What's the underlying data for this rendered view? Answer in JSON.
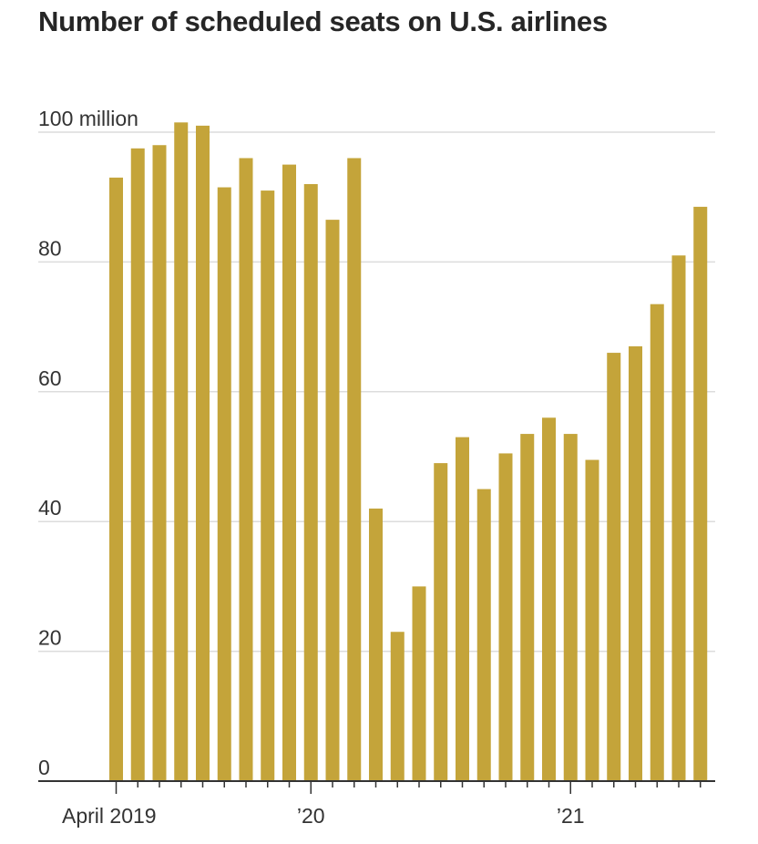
{
  "chart_data": {
    "type": "bar",
    "title": "Number of scheduled seats on U.S. airlines",
    "xlabel": "",
    "ylabel": "",
    "ylim": [
      0,
      100
    ],
    "y_ticks": [
      {
        "value": 0,
        "label": "0"
      },
      {
        "value": 20,
        "label": "20"
      },
      {
        "value": 40,
        "label": "40"
      },
      {
        "value": 60,
        "label": "60"
      },
      {
        "value": 80,
        "label": "80"
      },
      {
        "value": 100,
        "label": "100 million"
      }
    ],
    "categories": [
      "2019-04",
      "2019-05",
      "2019-06",
      "2019-07",
      "2019-08",
      "2019-09",
      "2019-10",
      "2019-11",
      "2019-12",
      "2020-01",
      "2020-02",
      "2020-03",
      "2020-04",
      "2020-05",
      "2020-06",
      "2020-07",
      "2020-08",
      "2020-09",
      "2020-10",
      "2020-11",
      "2020-12",
      "2021-01",
      "2021-02",
      "2021-03",
      "2021-04",
      "2021-05",
      "2021-06",
      "2021-07"
    ],
    "values": [
      93,
      97.5,
      98,
      101.5,
      101,
      91.5,
      96,
      91,
      95,
      92,
      86.5,
      96,
      42,
      23,
      30,
      49,
      53,
      45,
      50.5,
      53.5,
      56,
      53.5,
      49.5,
      66,
      67,
      73.5,
      81,
      88.5
    ],
    "x_labels": [
      {
        "index": 0,
        "label": "April 2019"
      },
      {
        "index": 9,
        "label": "’20"
      },
      {
        "index": 21,
        "label": "’21"
      }
    ],
    "grid": true,
    "bar_color": "#c4a43a"
  }
}
